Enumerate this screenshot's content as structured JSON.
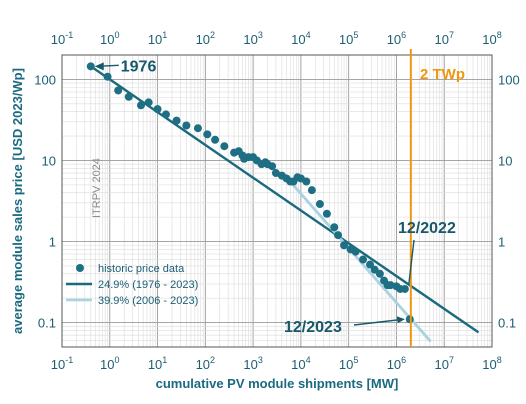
{
  "chart_data": {
    "type": "scatter",
    "xscale": "log",
    "yscale": "log",
    "xlim": [
      0.1,
      100000000
    ],
    "ylim": [
      0.05,
      200
    ],
    "xlabel": "cumulative PV module shipments [MW]",
    "ylabel": "average module sales price [USD 2023/Wp]",
    "x_ticks": [
      {
        "base": "10",
        "exp": "-1",
        "value": 0.1
      },
      {
        "base": "10",
        "exp": "0",
        "value": 1
      },
      {
        "base": "10",
        "exp": "1",
        "value": 10
      },
      {
        "base": "10",
        "exp": "2",
        "value": 100
      },
      {
        "base": "10",
        "exp": "3",
        "value": 1000
      },
      {
        "base": "10",
        "exp": "4",
        "value": 10000
      },
      {
        "base": "10",
        "exp": "5",
        "value": 100000
      },
      {
        "base": "10",
        "exp": "6",
        "value": 1000000
      },
      {
        "base": "10",
        "exp": "7",
        "value": 10000000
      },
      {
        "base": "10",
        "exp": "8",
        "value": 100000000
      }
    ],
    "y_ticks": [
      {
        "label": "0.1",
        "value": 0.1
      },
      {
        "label": "1",
        "value": 1
      },
      {
        "label": "10",
        "value": 10
      },
      {
        "label": "100",
        "value": 100
      }
    ],
    "series": [
      {
        "name": "historic price data",
        "kind": "scatter",
        "color": "#1f6f84",
        "points": [
          [
            0.4,
            145
          ],
          [
            0.9,
            108
          ],
          [
            1.5,
            73
          ],
          [
            2.5,
            61
          ],
          [
            4.5,
            48
          ],
          [
            6.5,
            52
          ],
          [
            10,
            43
          ],
          [
            15,
            37
          ],
          [
            25,
            31
          ],
          [
            40,
            27
          ],
          [
            70,
            25
          ],
          [
            110,
            21
          ],
          [
            160,
            18
          ],
          [
            250,
            15
          ],
          [
            400,
            12.5
          ],
          [
            500,
            13
          ],
          [
            600,
            11.5
          ],
          [
            650,
            10.5
          ],
          [
            800,
            11
          ],
          [
            1000,
            11
          ],
          [
            1200,
            10
          ],
          [
            1500,
            9
          ],
          [
            1800,
            9.5
          ],
          [
            2000,
            9
          ],
          [
            2500,
            8.5
          ],
          [
            3000,
            7
          ],
          [
            4000,
            6.5
          ],
          [
            5000,
            6
          ],
          [
            6000,
            5.5
          ],
          [
            7000,
            5.5
          ],
          [
            8500,
            6.2
          ],
          [
            10000,
            6
          ],
          [
            13000,
            5.5
          ],
          [
            17000,
            4.3
          ],
          [
            25000,
            2.9
          ],
          [
            35000,
            2.2
          ],
          [
            50000,
            1.5
          ],
          [
            60000,
            1.2
          ],
          [
            80000,
            0.9
          ],
          [
            110000,
            0.8
          ],
          [
            140000,
            0.75
          ],
          [
            200000,
            0.6
          ],
          [
            280000,
            0.52
          ],
          [
            350000,
            0.45
          ],
          [
            450000,
            0.4
          ],
          [
            550000,
            0.33
          ],
          [
            650000,
            0.29
          ],
          [
            750000,
            0.29
          ],
          [
            1000000,
            0.28
          ],
          [
            1200000,
            0.26
          ],
          [
            1500000,
            0.26
          ],
          [
            1900000,
            0.11
          ]
        ]
      },
      {
        "name": "24.9% (1976 - 2023)",
        "kind": "line",
        "color": "#1a6a7e",
        "points": [
          [
            0.4,
            145
          ],
          [
            50000000,
            0.077
          ]
        ]
      },
      {
        "name": "39.9% (2006 - 2023)",
        "kind": "line",
        "color": "#a9d3e0",
        "points": [
          [
            5000,
            6.2
          ],
          [
            5000000,
            0.06
          ]
        ]
      }
    ],
    "legend_position": "bottom-left",
    "annotations": {
      "year_1976": "1976",
      "month_2022": "12/2022",
      "month_2023": "12/2023",
      "watermark": "ITRPV 2024",
      "marker_label": "2 TWp"
    },
    "marker_x": 2000000,
    "colors": {
      "primary": "#1b6a80",
      "light": "#a9d3e0",
      "marker": "#f0960f",
      "grid": "#d2d2d2"
    }
  }
}
